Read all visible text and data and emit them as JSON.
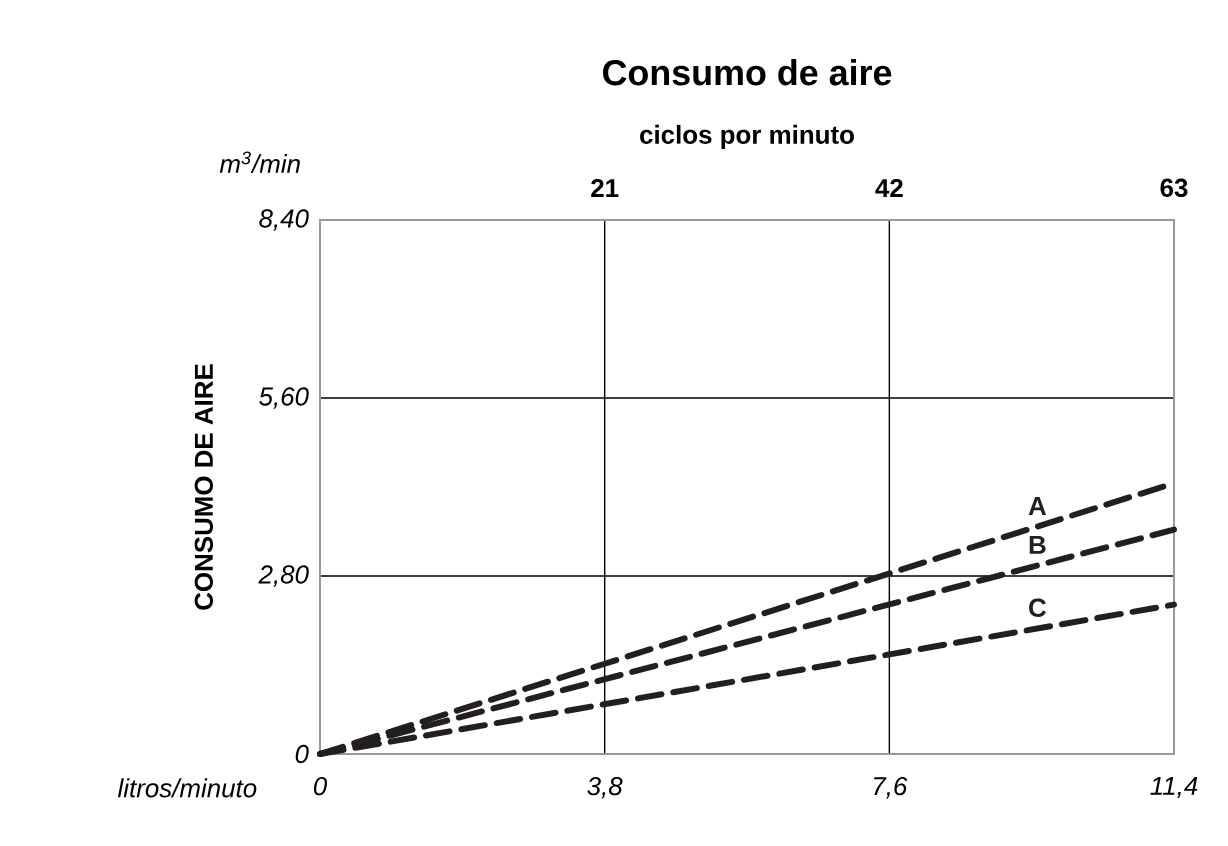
{
  "chart_data": {
    "type": "line",
    "title": "Consumo de aire",
    "x2label": "ciclos por minuto",
    "xlabel": "litros/minuto",
    "ylabel": "CONSUMO DE AIRE",
    "annotations": [
      "m$^{3}$/min"
    ],
    "xlim": [
      0,
      11.4
    ],
    "xticks": [
      0,
      {
        "value": 3.8,
        "label": "3,8"
      },
      {
        "value": 7.6,
        "label": "7,6"
      },
      {
        "value": 11.4,
        "label": "11,4"
      }
    ],
    "x2lim": [
      0,
      63
    ],
    "x2ticks": [
      21,
      42,
      63
    ],
    "ylim": [
      0,
      8.4
    ],
    "yticks": [
      0,
      {
        "value": 2.8,
        "label": "2,80"
      },
      {
        "value": 5.6,
        "label": "5,60"
      },
      {
        "value": 8.4,
        "label": "8,40"
      }
    ],
    "grid": true,
    "line_style": "dashed",
    "marker": "none",
    "x": [
      0,
      11.4
    ],
    "series": [
      {
        "name": "A",
        "color": "#231f20",
        "values": [
          0,
          4.26
        ]
      },
      {
        "name": "B",
        "color": "#231f20",
        "values": [
          0,
          3.53
        ]
      },
      {
        "name": "C",
        "color": "#231f20",
        "values": [
          0,
          2.35
        ]
      }
    ]
  }
}
